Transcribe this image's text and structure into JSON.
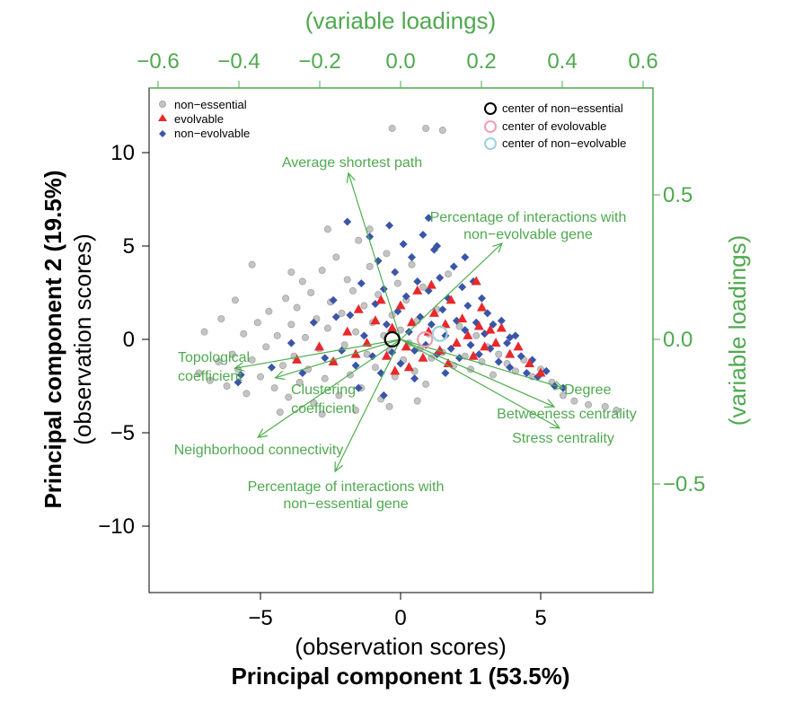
{
  "chart_data": {
    "type": "scatter",
    "subtype": "pca-biplot",
    "xlabel": "Principal component 1 (53.5%)",
    "xlabel_sub": "(observation scores)",
    "ylabel": "Principal component 2 (19.5%)",
    "ylabel_sub": "(observation scores)",
    "top_axis_label": "(variable loadings)",
    "right_axis_label": "(variable loadings)",
    "xlim": [
      -9,
      9
    ],
    "ylim": [
      -13.5,
      13.5
    ],
    "loading_xlim": [
      -0.62,
      0.62
    ],
    "loading_ylim": [
      -0.87,
      0.87
    ],
    "x_ticks": [
      "−5",
      "0",
      "5"
    ],
    "x_tick_values": [
      -5,
      0,
      5
    ],
    "y_ticks": [
      "10",
      "5",
      "0",
      "−5",
      "−10"
    ],
    "y_tick_values": [
      10,
      5,
      0,
      -5,
      -10
    ],
    "top_ticks": [
      "−0.6",
      "−0.4",
      "−0.2",
      "0.0",
      "0.2",
      "0.4",
      "0.6"
    ],
    "top_tick_values": [
      -0.6,
      -0.4,
      -0.2,
      0,
      0.2,
      0.4,
      0.6
    ],
    "right_ticks": [
      "0.5",
      "0.0",
      "−0.5"
    ],
    "right_tick_values": [
      0.5,
      0,
      -0.5
    ],
    "colors": {
      "axis_secondary": "#4fa94f",
      "arrow": "#4fae4f",
      "non_essential": "#b9b9b9",
      "evolvable": "#e8282b",
      "non_evolvable": "#3a55a8",
      "center_non_essential": "#000000",
      "center_evolvable": "#f0a0b0",
      "center_non_evolvable": "#9fd0e0"
    },
    "legend_left": [
      "non−essential",
      "evolvable",
      "non−evolvable"
    ],
    "legend_right": [
      "center of non−essential",
      "center of evolovable",
      "center of non−evolvable"
    ],
    "series": [
      {
        "name": "non−essential",
        "marker": "circle",
        "points": [
          [
            -7.2,
            -1.8
          ],
          [
            -6.8,
            -2.2
          ],
          [
            -6.5,
            -1.2
          ],
          [
            -6.2,
            -2.5
          ],
          [
            -6,
            -0.8
          ],
          [
            -5.8,
            -1.6
          ],
          [
            -5.6,
            0.3
          ],
          [
            -5.5,
            -2.9
          ],
          [
            -5.3,
            -1.1
          ],
          [
            -5.1,
            0.9
          ],
          [
            -5,
            -2
          ],
          [
            -4.8,
            -0.4
          ],
          [
            -4.7,
            1.5
          ],
          [
            -4.5,
            -2.6
          ],
          [
            -4.4,
            0.2
          ],
          [
            -4.2,
            -1.4
          ],
          [
            -4.1,
            2.2
          ],
          [
            -4,
            -3.1
          ],
          [
            -3.9,
            0.8
          ],
          [
            -3.8,
            -0.9
          ],
          [
            -3.7,
            1.7
          ],
          [
            -3.6,
            -2.3
          ],
          [
            -3.5,
            3.1
          ],
          [
            -3.4,
            0.1
          ],
          [
            -3.3,
            -1.6
          ],
          [
            -3.2,
            2.5
          ],
          [
            -3.1,
            -3.4
          ],
          [
            -3,
            1.1
          ],
          [
            -2.9,
            -0.5
          ],
          [
            -2.8,
            3.7
          ],
          [
            -2.7,
            -2.1
          ],
          [
            -2.6,
            0.6
          ],
          [
            -2.5,
            2
          ],
          [
            -2.4,
            -1.2
          ],
          [
            -2.3,
            4.4
          ],
          [
            -2.2,
            -3
          ],
          [
            -2.1,
            1.4
          ],
          [
            -2,
            -0.3
          ],
          [
            -1.9,
            3.2
          ],
          [
            -1.8,
            -1.9
          ],
          [
            -1.7,
            2.6
          ],
          [
            -1.6,
            0.4
          ],
          [
            -1.5,
            5.3
          ],
          [
            -1.4,
            -2.6
          ],
          [
            -1.3,
            1.8
          ],
          [
            -1.2,
            -0.8
          ],
          [
            -1.1,
            3.9
          ],
          [
            -1,
            0.9
          ],
          [
            -0.9,
            -1.5
          ],
          [
            -0.8,
            2.4
          ],
          [
            -0.7,
            -3.2
          ],
          [
            -0.6,
            0.2
          ],
          [
            -0.5,
            4.6
          ],
          [
            -0.4,
            -0.6
          ],
          [
            -0.3,
            1.3
          ],
          [
            -0.2,
            -2
          ],
          [
            -0.1,
            3
          ],
          [
            0,
            0.5
          ],
          [
            0.1,
            -1.1
          ],
          [
            0.2,
            2.1
          ],
          [
            0.3,
            -0.2
          ],
          [
            0.4,
            4
          ],
          [
            0.5,
            -1.7
          ],
          [
            0.6,
            1
          ],
          [
            0.7,
            -0.5
          ],
          [
            0.8,
            2.8
          ],
          [
            0.9,
            -2.4
          ],
          [
            1,
            0.3
          ],
          [
            1.1,
            -1
          ],
          [
            1.3,
            1.6
          ],
          [
            1.5,
            -0.7
          ],
          [
            1.7,
            3.5
          ],
          [
            1.9,
            -1.4
          ],
          [
            2.1,
            0.7
          ],
          [
            2.3,
            -0.9
          ],
          [
            2.5,
            -1.6
          ],
          [
            2.7,
            0.2
          ],
          [
            2.9,
            -1.2
          ],
          [
            3.1,
            -0.4
          ],
          [
            3.3,
            -1.9
          ],
          [
            3.5,
            -0.8
          ],
          [
            3.8,
            -1.3
          ],
          [
            4.1,
            -1.7
          ],
          [
            4.4,
            -1.1
          ],
          [
            4.7,
            -2
          ],
          [
            5,
            -1.6
          ],
          [
            5.4,
            -2.3
          ],
          [
            5.8,
            -3
          ],
          [
            6.2,
            -3.3
          ],
          [
            6.7,
            -3.5
          ],
          [
            7.3,
            -3.6
          ],
          [
            7.7,
            -3.8
          ],
          [
            -0.3,
            11.3
          ],
          [
            0.9,
            11.3
          ],
          [
            1.5,
            11.2
          ],
          [
            -5.3,
            4
          ],
          [
            -3.9,
            3.6
          ],
          [
            -2.6,
            5.9
          ],
          [
            -1.1,
            5.9
          ],
          [
            -2.8,
            -4
          ],
          [
            -1.6,
            -3.8
          ],
          [
            -0.4,
            -3.6
          ],
          [
            0.6,
            -3.3
          ],
          [
            -4.3,
            -3.9
          ],
          [
            -6.4,
            1.1
          ],
          [
            -7,
            0.4
          ],
          [
            -5.9,
            2.1
          ]
        ]
      },
      {
        "name": "non−evolvable",
        "marker": "diamond",
        "points": [
          [
            -5.8,
            -2.3
          ],
          [
            -4.6,
            -1.5
          ],
          [
            -3.9,
            -0.2
          ],
          [
            -3.5,
            -1.8
          ],
          [
            -3.1,
            0.9
          ],
          [
            -2.7,
            -1
          ],
          [
            -2.4,
            2.1
          ],
          [
            -2.1,
            -0.6
          ],
          [
            -1.9,
            6.3
          ],
          [
            -1.8,
            1.3
          ],
          [
            -1.6,
            -1.4
          ],
          [
            -1.4,
            3
          ],
          [
            -1.3,
            0.2
          ],
          [
            -1.1,
            5.5
          ],
          [
            -1,
            -0.9
          ],
          [
            -0.9,
            1.9
          ],
          [
            -0.8,
            4.2
          ],
          [
            -0.7,
            -1.8
          ],
          [
            -0.6,
            2.7
          ],
          [
            -0.5,
            0.8
          ],
          [
            -0.4,
            6.1
          ],
          [
            -0.3,
            -0.7
          ],
          [
            -0.2,
            3.6
          ],
          [
            -0.1,
            1.5
          ],
          [
            0,
            -1.3
          ],
          [
            0.1,
            5.1
          ],
          [
            0.2,
            2.3
          ],
          [
            0.3,
            0.4
          ],
          [
            0.4,
            4.4
          ],
          [
            0.5,
            -0.6
          ],
          [
            0.6,
            3.1
          ],
          [
            0.7,
            1.2
          ],
          [
            0.8,
            5.6
          ],
          [
            0.9,
            -0.3
          ],
          [
            1,
            2.6
          ],
          [
            1.1,
            0.8
          ],
          [
            1.2,
            4.8
          ],
          [
            1.3,
            -0.8
          ],
          [
            1.4,
            3.3
          ],
          [
            1.5,
            1.6
          ],
          [
            1.6,
            0.2
          ],
          [
            1.7,
            2.2
          ],
          [
            1.8,
            -0.5
          ],
          [
            1.9,
            3.9
          ],
          [
            2,
            1
          ],
          [
            2.1,
            -1
          ],
          [
            2.2,
            2.8
          ],
          [
            2.3,
            0.5
          ],
          [
            2.4,
            1.8
          ],
          [
            2.5,
            -0.3
          ],
          [
            2.6,
            3.1
          ],
          [
            2.7,
            0.9
          ],
          [
            2.8,
            -0.8
          ],
          [
            2.9,
            2.2
          ],
          [
            3,
            0.3
          ],
          [
            3.1,
            1.4
          ],
          [
            3.2,
            -0.5
          ],
          [
            3.3,
            0.8
          ],
          [
            3.5,
            -1.2
          ],
          [
            3.6,
            1
          ],
          [
            3.8,
            -0.2
          ],
          [
            3.9,
            -1.5
          ],
          [
            4.1,
            0.2
          ],
          [
            4.3,
            -0.9
          ],
          [
            4.5,
            -1.8
          ],
          [
            4.7,
            -1.1
          ],
          [
            4.9,
            -2
          ],
          [
            5.2,
            -1.7
          ],
          [
            5.5,
            -2.5
          ],
          [
            5.8,
            -2.6
          ],
          [
            -1.5,
            -2.6
          ],
          [
            -0.6,
            -3
          ],
          [
            0.5,
            -2.1
          ],
          [
            1.6,
            -1.8
          ],
          [
            -2.3,
            1.2
          ],
          [
            1,
            6.5
          ],
          [
            2.3,
            4.4
          ],
          [
            3.9,
            0.1
          ],
          [
            1.3,
            5
          ],
          [
            -5.7,
            -1.9
          ]
        ]
      },
      {
        "name": "evolvable",
        "marker": "triangle",
        "points": [
          [
            -3.7,
            -1.1
          ],
          [
            -2.9,
            -0.4
          ],
          [
            -2.4,
            -1.2
          ],
          [
            -1.9,
            0.4
          ],
          [
            -1.5,
            1.6
          ],
          [
            -1.2,
            -0.2
          ],
          [
            -0.9,
            1
          ],
          [
            -0.7,
            2.1
          ],
          [
            -0.5,
            -0.9
          ],
          [
            -0.3,
            0.6
          ],
          [
            0,
            1.8
          ],
          [
            0.2,
            -0.4
          ],
          [
            0.4,
            0.9
          ],
          [
            0.6,
            2.6
          ],
          [
            0.8,
            -1
          ],
          [
            1,
            0.4
          ],
          [
            1.2,
            1.4
          ],
          [
            1.4,
            -0.6
          ],
          [
            1.6,
            0.8
          ],
          [
            1.8,
            2.1
          ],
          [
            2,
            -0.2
          ],
          [
            2.2,
            1.1
          ],
          [
            2.4,
            0.2
          ],
          [
            2.6,
            -0.9
          ],
          [
            2.7,
            3.1
          ],
          [
            2.8,
            0.7
          ],
          [
            3,
            -0.4
          ],
          [
            3.2,
            0.5
          ],
          [
            3.4,
            -0.2
          ],
          [
            3.6,
            0.6
          ],
          [
            3.9,
            -0.8
          ],
          [
            4.2,
            -0.4
          ],
          [
            4.6,
            -1.3
          ],
          [
            5,
            -1.8
          ],
          [
            0.3,
            -1.5
          ],
          [
            1.7,
            -1.3
          ],
          [
            -0.2,
            -1.7
          ],
          [
            2.9,
            1.7
          ],
          [
            -1.6,
            -0.8
          ],
          [
            1.1,
            2.9
          ]
        ]
      }
    ],
    "centers": [
      {
        "name": "center of non−essential",
        "x": -0.3,
        "y": 0.0
      },
      {
        "name": "center of evolovable",
        "x": 0.87,
        "y": 0.0
      },
      {
        "name": "center of non−evolvable",
        "x": 1.4,
        "y": 0.3
      }
    ],
    "loadings": [
      {
        "lines": [
          "Average shortest path"
        ],
        "x": -0.129,
        "y": 0.575
      },
      {
        "lines": [
          "Percentage of interactions with",
          "non−evolvable gene"
        ],
        "x": 0.251,
        "y": 0.332
      },
      {
        "lines": [
          "Topological",
          "coefficient"
        ],
        "x": -0.41,
        "y": -0.1
      },
      {
        "lines": [
          "Clustering",
          "coefficient"
        ],
        "x": -0.31,
        "y": -0.133
      },
      {
        "lines": [
          "Neighborhood connectivity"
        ],
        "x": -0.353,
        "y": -0.339
      },
      {
        "lines": [
          "Percentage of interactions with",
          "non−essential gene"
        ],
        "x": -0.162,
        "y": -0.457
      },
      {
        "lines": [
          "Degree"
        ],
        "x": 0.402,
        "y": -0.168
      },
      {
        "lines": [
          "Betweeness centrality"
        ],
        "x": 0.38,
        "y": -0.233
      },
      {
        "lines": [
          "Stress centrality"
        ],
        "x": 0.393,
        "y": -0.307
      }
    ]
  }
}
